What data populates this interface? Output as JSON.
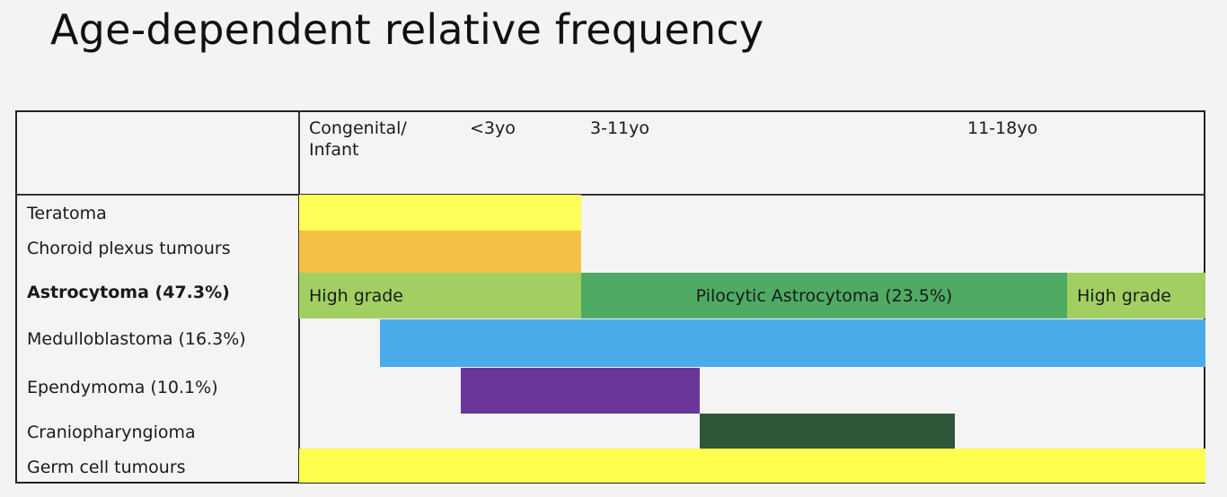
{
  "title": "Age-dependent relative frequency",
  "header": {
    "age_groups": [
      "Congenital/\nInfant",
      "<3yo",
      "3-11yo",
      "11-18yo"
    ]
  },
  "rows": [
    {
      "label": "Teratoma",
      "bold": false
    },
    {
      "label": "Choroid plexus tumours",
      "bold": false
    },
    {
      "label": "Astrocytoma (47.3%)",
      "bold": true
    },
    {
      "label": "Medulloblastoma (16.3%)",
      "bold": false
    },
    {
      "label": "Ependymoma (10.1%)",
      "bold": false
    },
    {
      "label": "Craniopharyngioma",
      "bold": false
    },
    {
      "label": "Germ cell tumours",
      "bold": false
    }
  ],
  "bars": [
    {
      "row": 0,
      "label": "",
      "color": "#ffff57"
    },
    {
      "row": 1,
      "label": "",
      "color": "#f4c046"
    },
    {
      "row": 2,
      "label": "High grade",
      "color": "#a2cf62"
    },
    {
      "row": 2,
      "label": "Pilocytic Astrocytoma (23.5%)",
      "color": "#4faa63"
    },
    {
      "row": 2,
      "label": "High grade",
      "color": "#a2cf62"
    },
    {
      "row": 3,
      "label": "",
      "color": "#4aacea"
    },
    {
      "row": 4,
      "label": "",
      "color": "#6a3699"
    },
    {
      "row": 5,
      "label": "",
      "color": "#2e5638"
    },
    {
      "row": 6,
      "label": "",
      "color": "#ffff4f"
    }
  ]
}
